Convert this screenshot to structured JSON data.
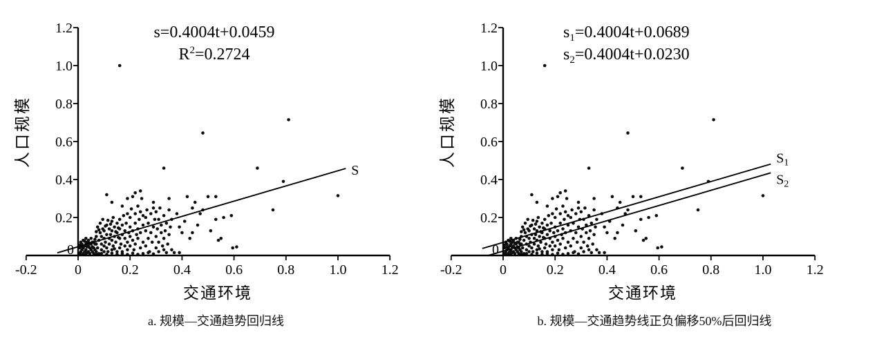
{
  "figure": {
    "background": "#ffffff",
    "ink_color": "#000000",
    "dot_color": "#0d0d0d"
  },
  "chart_data": {
    "type": "scatter",
    "points": [
      [
        0.005,
        0.01
      ],
      [
        0.01,
        0.02
      ],
      [
        0.01,
        0.005
      ],
      [
        0.015,
        0.03
      ],
      [
        0.02,
        0.01
      ],
      [
        0.02,
        0.04
      ],
      [
        0.025,
        0.02
      ],
      [
        0.03,
        0.005
      ],
      [
        0.03,
        0.03
      ],
      [
        0.03,
        0.06
      ],
      [
        0.035,
        0.015
      ],
      [
        0.04,
        0.02
      ],
      [
        0.04,
        0.05
      ],
      [
        0.045,
        0.01
      ],
      [
        0.05,
        0.03
      ],
      [
        0.05,
        0.06
      ],
      [
        0.055,
        0.02
      ],
      [
        0.06,
        0.01
      ],
      [
        0.06,
        0.04
      ],
      [
        0.065,
        0.06
      ],
      [
        0.005,
        0.04
      ],
      [
        0.015,
        0.06
      ],
      [
        0.025,
        0.05
      ],
      [
        0.035,
        0.07
      ],
      [
        0.045,
        0.04
      ],
      [
        0.055,
        0.07
      ],
      [
        0.01,
        0.07
      ],
      [
        0.02,
        0.08
      ],
      [
        0.03,
        0.09
      ],
      [
        0.04,
        0.08
      ],
      [
        0.05,
        0.09
      ],
      [
        0.06,
        0.07
      ],
      [
        0.005,
        0.055
      ],
      [
        0.045,
        0.065
      ],
      [
        0.055,
        0.045
      ],
      [
        0.025,
        0.075
      ],
      [
        0.035,
        0.045
      ],
      [
        0.015,
        0.045
      ],
      [
        0.065,
        0.03
      ],
      [
        0.065,
        0.085
      ],
      [
        0.07,
        0.02
      ],
      [
        0.07,
        0.06
      ],
      [
        0.07,
        0.1
      ],
      [
        0.075,
        0.04
      ],
      [
        0.08,
        0.01
      ],
      [
        0.08,
        0.08
      ],
      [
        0.085,
        0.12
      ],
      [
        0.09,
        0.03
      ],
      [
        0.09,
        0.06
      ],
      [
        0.09,
        0.1
      ],
      [
        0.095,
        0.14
      ],
      [
        0.1,
        0.02
      ],
      [
        0.1,
        0.05
      ],
      [
        0.1,
        0.09
      ],
      [
        0.1,
        0.13
      ],
      [
        0.105,
        0.07
      ],
      [
        0.11,
        0.04
      ],
      [
        0.11,
        0.11
      ],
      [
        0.11,
        0.16
      ],
      [
        0.115,
        0.02
      ],
      [
        0.12,
        0.06
      ],
      [
        0.12,
        0.09
      ],
      [
        0.12,
        0.14
      ],
      [
        0.125,
        0.11
      ],
      [
        0.13,
        0.03
      ],
      [
        0.13,
        0.08
      ],
      [
        0.13,
        0.13
      ],
      [
        0.13,
        0.18
      ],
      [
        0.135,
        0.05
      ],
      [
        0.14,
        0.1
      ],
      [
        0.14,
        0.15
      ],
      [
        0.145,
        0.07
      ],
      [
        0.15,
        0.02
      ],
      [
        0.15,
        0.12
      ],
      [
        0.15,
        0.17
      ],
      [
        0.075,
        0.15
      ],
      [
        0.085,
        0.17
      ],
      [
        0.095,
        0.19
      ],
      [
        0.105,
        0.155
      ],
      [
        0.115,
        0.185
      ],
      [
        0.125,
        0.165
      ],
      [
        0.135,
        0.2
      ],
      [
        0.145,
        0.125
      ],
      [
        0.08,
        0.135
      ],
      [
        0.14,
        0.035
      ],
      [
        0.07,
        0.125
      ],
      [
        0.155,
        0.095
      ],
      [
        0.155,
        0.145
      ],
      [
        0.16,
        0.04
      ],
      [
        0.16,
        0.09
      ],
      [
        0.16,
        0.14
      ],
      [
        0.16,
        0.19
      ],
      [
        0.165,
        0.06
      ],
      [
        0.17,
        0.02
      ],
      [
        0.17,
        0.11
      ],
      [
        0.17,
        0.16
      ],
      [
        0.175,
        0.21
      ],
      [
        0.18,
        0.05
      ],
      [
        0.18,
        0.09
      ],
      [
        0.18,
        0.13
      ],
      [
        0.185,
        0.17
      ],
      [
        0.19,
        0.03
      ],
      [
        0.19,
        0.07
      ],
      [
        0.19,
        0.22
      ],
      [
        0.195,
        0.12
      ],
      [
        0.2,
        0.05
      ],
      [
        0.2,
        0.1
      ],
      [
        0.2,
        0.15
      ],
      [
        0.2,
        0.2
      ],
      [
        0.205,
        0.245
      ],
      [
        0.21,
        0.08
      ],
      [
        0.21,
        0.13
      ],
      [
        0.215,
        0.03
      ],
      [
        0.22,
        0.06
      ],
      [
        0.22,
        0.17
      ],
      [
        0.22,
        0.22
      ],
      [
        0.225,
        0.11
      ],
      [
        0.23,
        0.09
      ],
      [
        0.23,
        0.14
      ],
      [
        0.23,
        0.26
      ],
      [
        0.235,
        0.19
      ],
      [
        0.24,
        0.04
      ],
      [
        0.24,
        0.12
      ],
      [
        0.24,
        0.23
      ],
      [
        0.245,
        0.3
      ],
      [
        0.25,
        0.07
      ],
      [
        0.25,
        0.16
      ],
      [
        0.25,
        0.21
      ],
      [
        0.11,
        0.32
      ],
      [
        0.13,
        0.28
      ],
      [
        0.19,
        0.3
      ],
      [
        0.22,
        0.33
      ],
      [
        0.24,
        0.34
      ],
      [
        0.29,
        0.28
      ],
      [
        0.17,
        0.26
      ],
      [
        0.21,
        0.31
      ],
      [
        0.26,
        0.05
      ],
      [
        0.26,
        0.13
      ],
      [
        0.26,
        0.2
      ],
      [
        0.265,
        0.24
      ],
      [
        0.27,
        0.09
      ],
      [
        0.27,
        0.17
      ],
      [
        0.275,
        0.02
      ],
      [
        0.28,
        0.12
      ],
      [
        0.28,
        0.22
      ],
      [
        0.285,
        0.07
      ],
      [
        0.29,
        0.15
      ],
      [
        0.29,
        0.25
      ],
      [
        0.295,
        0.19
      ],
      [
        0.3,
        0.04
      ],
      [
        0.3,
        0.1
      ],
      [
        0.3,
        0.23
      ],
      [
        0.305,
        0.14
      ],
      [
        0.31,
        0.07
      ],
      [
        0.31,
        0.19
      ],
      [
        0.315,
        0.25
      ],
      [
        0.32,
        0.12
      ],
      [
        0.32,
        0.16
      ],
      [
        0.325,
        0.05
      ],
      [
        0.33,
        0.09
      ],
      [
        0.33,
        0.21
      ],
      [
        0.335,
        0.13
      ],
      [
        0.34,
        0.17
      ],
      [
        0.345,
        0.06
      ],
      [
        0.35,
        0.11
      ],
      [
        0.35,
        0.24
      ],
      [
        0.355,
        0.15
      ],
      [
        0.36,
        0.03
      ],
      [
        0.36,
        0.19
      ],
      [
        0.07,
        0.005
      ],
      [
        0.09,
        0.01
      ],
      [
        0.11,
        0.005
      ],
      [
        0.13,
        0.012
      ],
      [
        0.15,
        0.006
      ],
      [
        0.17,
        0.01
      ],
      [
        0.19,
        0.005
      ],
      [
        0.21,
        0.012
      ],
      [
        0.23,
        0.006
      ],
      [
        0.25,
        0.01
      ],
      [
        0.27,
        0.015
      ],
      [
        0.29,
        0.008
      ],
      [
        0.31,
        0.02
      ],
      [
        0.33,
        0.03
      ],
      [
        0.34,
        0.015
      ],
      [
        0.37,
        0.015
      ],
      [
        0.39,
        0.015
      ],
      [
        0.39,
        0.15
      ],
      [
        0.4,
        0.12
      ],
      [
        0.42,
        0.31
      ],
      [
        0.43,
        0.09
      ],
      [
        0.44,
        0.25
      ],
      [
        0.45,
        0.28
      ],
      [
        0.47,
        0.22
      ],
      [
        0.48,
        0.24
      ],
      [
        0.5,
        0.31
      ],
      [
        0.51,
        0.13
      ],
      [
        0.53,
        0.19
      ],
      [
        0.53,
        0.31
      ],
      [
        0.54,
        0.08
      ],
      [
        0.55,
        0.09
      ],
      [
        0.56,
        0.2
      ],
      [
        0.59,
        0.21
      ],
      [
        0.595,
        0.04
      ],
      [
        0.61,
        0.045
      ],
      [
        0.33,
        0.46
      ],
      [
        0.69,
        0.46
      ],
      [
        0.75,
        0.24
      ],
      [
        0.79,
        0.39
      ],
      [
        1.0,
        0.315
      ],
      [
        0.16,
        1.0
      ],
      [
        0.48,
        0.645
      ],
      [
        0.81,
        0.715
      ],
      [
        0.35,
        0.3
      ],
      [
        0.38,
        0.22
      ],
      [
        0.41,
        0.18
      ],
      [
        0.46,
        0.16
      ],
      [
        0.44,
        0.12
      ]
    ],
    "panels": [
      {
        "caption": "a. 规模—交通趋势回归线",
        "xlabel": "交通环境",
        "ylabel": "人口规模",
        "xlim": [
          -0.2,
          1.2
        ],
        "ylim": [
          0,
          1.2
        ],
        "xticks": [
          -0.2,
          0,
          0.2,
          0.4,
          0.6,
          0.8,
          1.0,
          1.2
        ],
        "xticklabels": [
          "-0.2",
          "0",
          "0.2",
          "0.4",
          "0.6",
          "0.8",
          "1.0",
          "1.2"
        ],
        "yticks": [
          0,
          0.2,
          0.4,
          0.6,
          0.8,
          1.0,
          1.2
        ],
        "yticklabels": [
          "0",
          "0.2",
          "0.4",
          "0.6",
          "0.8",
          "1.0",
          "1.2"
        ],
        "grid": false,
        "legend": "none",
        "equations": [
          {
            "text": "s=0.4004t+0.0459",
            "pre": "s",
            "rest": "=0.4004t+0.0459"
          },
          {
            "text": "R²=0.2724",
            "pre": "R",
            "sup": "2",
            "rest": "=0.2724"
          }
        ],
        "lines": [
          {
            "label": "S",
            "label_base": "S",
            "label_sub": "",
            "slope": 0.4004,
            "intercept": 0.0459,
            "t_start": -0.08,
            "t_end": 1.03
          }
        ]
      },
      {
        "caption": "b. 规模—交通趋势线正负偏移50%后回归线",
        "xlabel": "交通环境",
        "ylabel": "人口规模",
        "xlim": [
          -0.2,
          1.2
        ],
        "ylim": [
          0,
          1.2
        ],
        "xticks": [
          -0.2,
          0,
          0.2,
          0.4,
          0.6,
          0.8,
          1.0,
          1.2
        ],
        "xticklabels": [
          "-0.2",
          "0",
          "0.2",
          "0.4",
          "0.6",
          "0.8",
          "1.0",
          "1.2"
        ],
        "yticks": [
          0,
          0.2,
          0.4,
          0.6,
          0.8,
          1.0,
          1.2
        ],
        "yticklabels": [
          "0",
          "0.2",
          "0.4",
          "0.6",
          "0.8",
          "1.0",
          "1.2"
        ],
        "grid": false,
        "legend": "none",
        "equations": [
          {
            "text": "s₁=0.4004t+0.0689",
            "pre": "s",
            "sub": "1",
            "rest": "=0.4004t+0.0689"
          },
          {
            "text": "s₂=0.4004t+0.0230",
            "pre": "s",
            "sub": "2",
            "rest": "=0.4004t+0.0230"
          }
        ],
        "lines": [
          {
            "label": "S₁",
            "label_base": "S",
            "label_sub": "1",
            "slope": 0.4004,
            "intercept": 0.0689,
            "t_start": -0.08,
            "t_end": 1.03
          },
          {
            "label": "S₂",
            "label_base": "S",
            "label_sub": "2",
            "slope": 0.4004,
            "intercept": 0.023,
            "t_start": -0.06,
            "t_end": 1.03
          }
        ]
      }
    ]
  }
}
